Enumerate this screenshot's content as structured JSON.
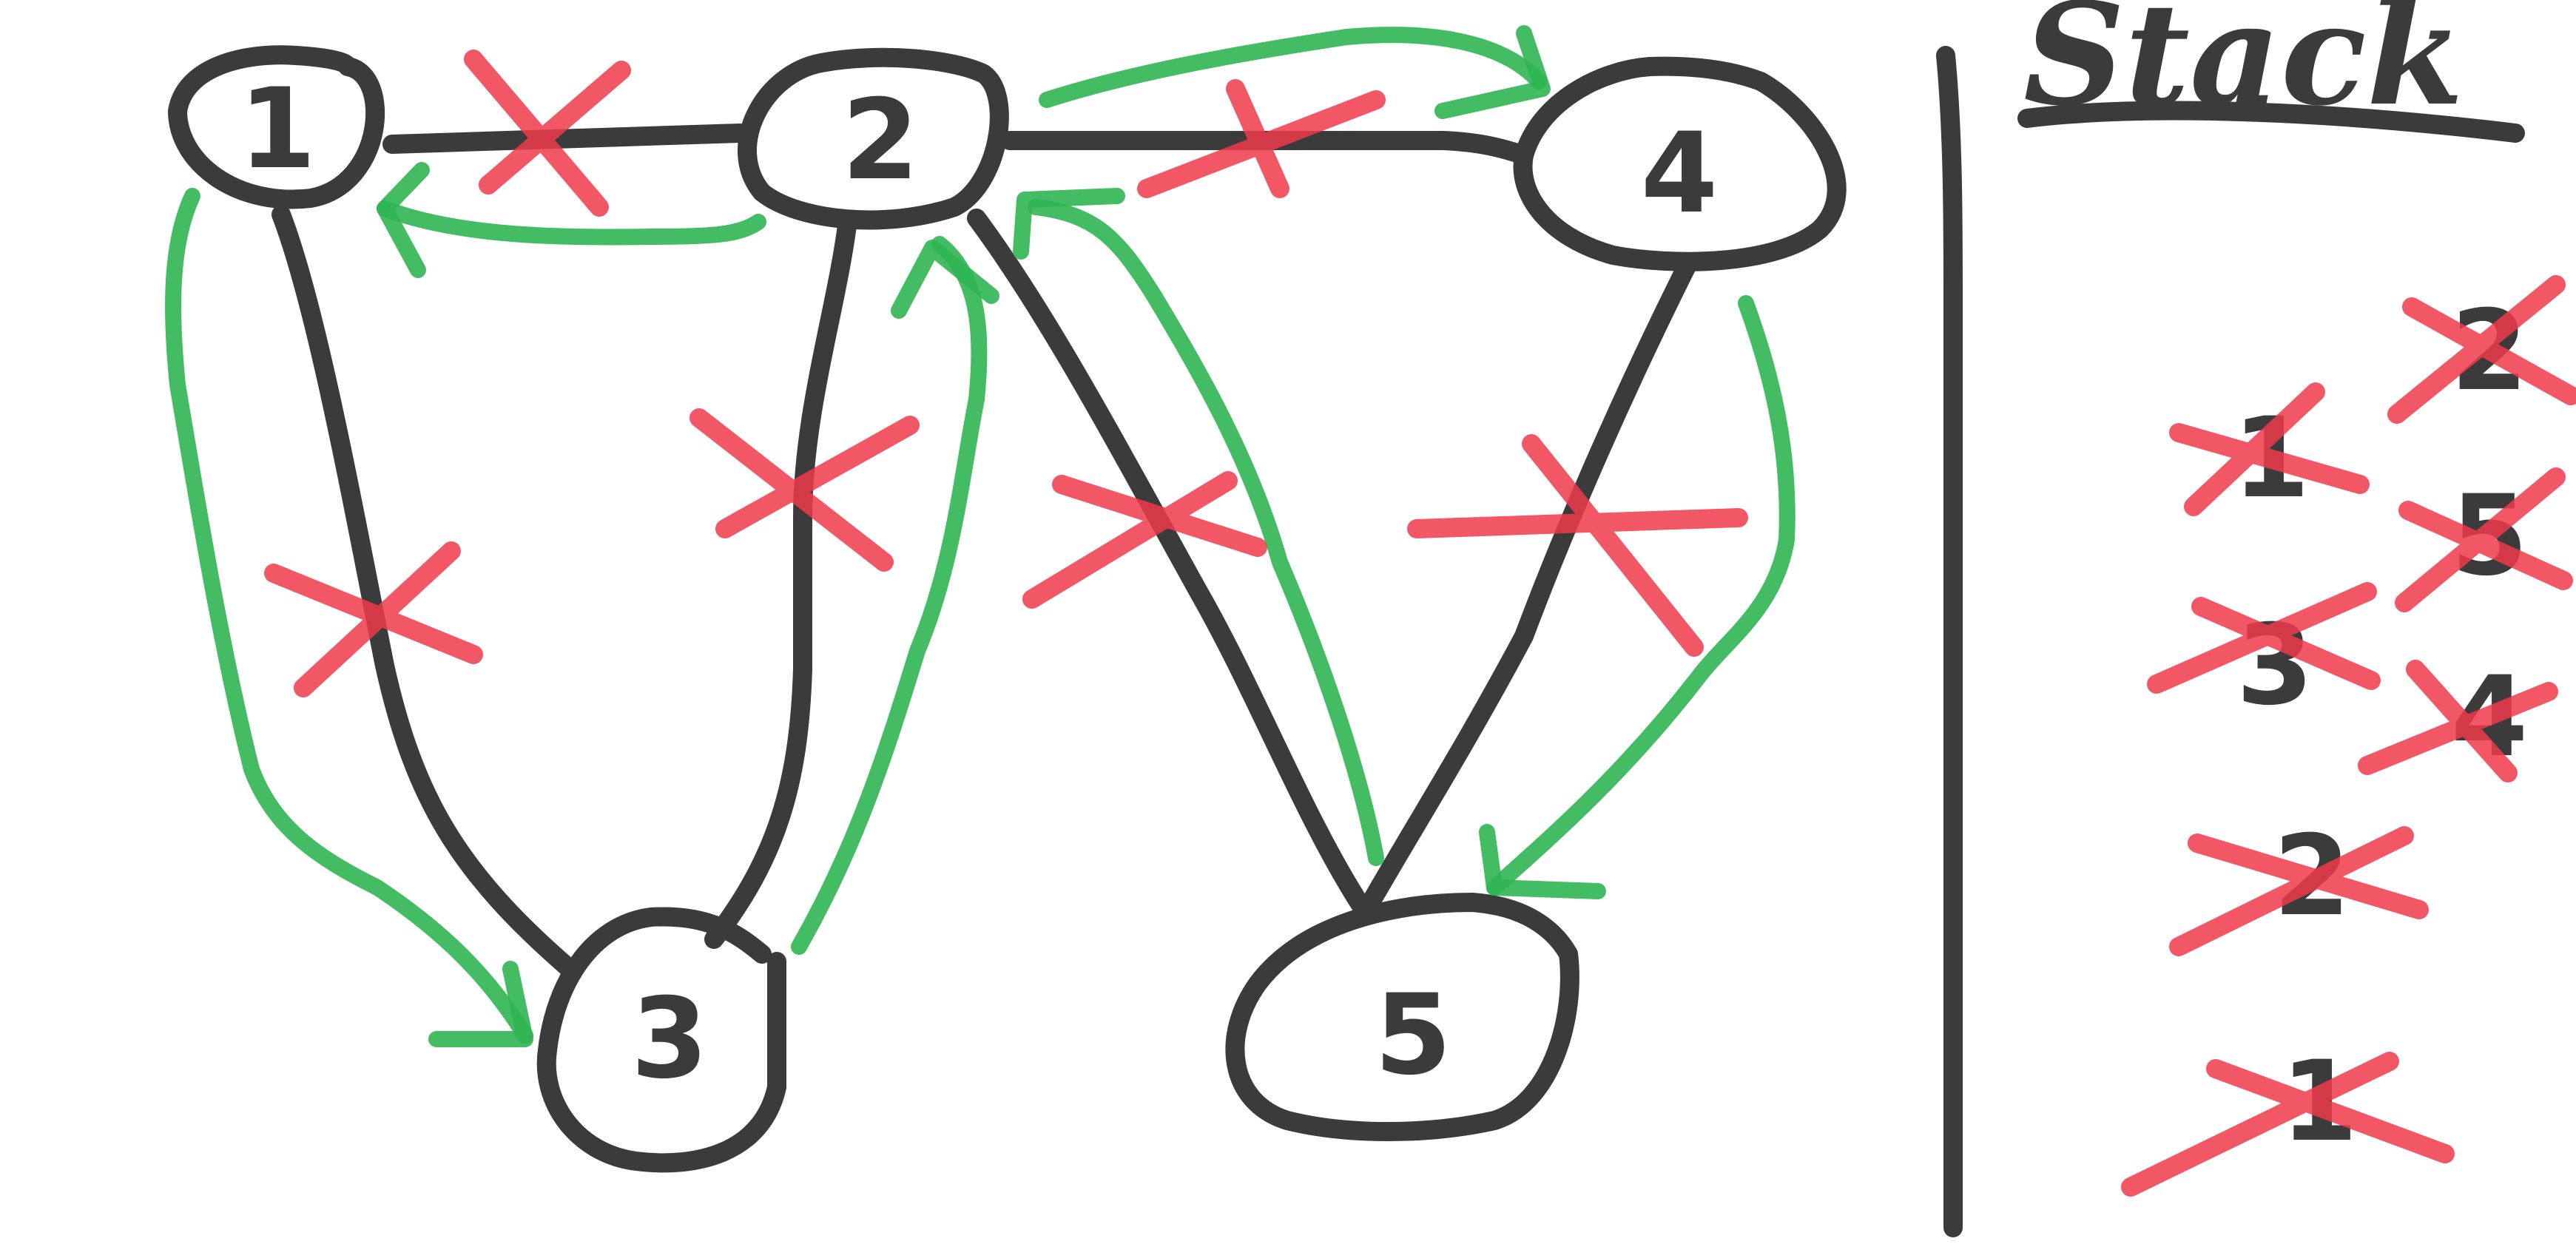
{
  "graph": {
    "nodes": [
      {
        "id": "1",
        "label": "1"
      },
      {
        "id": "2",
        "label": "2"
      },
      {
        "id": "3",
        "label": "3"
      },
      {
        "id": "4",
        "label": "4"
      },
      {
        "id": "5",
        "label": "5"
      }
    ],
    "edges": [
      {
        "from": "1",
        "to": "2",
        "crossed": true
      },
      {
        "from": "1",
        "to": "3",
        "crossed": true
      },
      {
        "from": "2",
        "to": "3",
        "crossed": true
      },
      {
        "from": "2",
        "to": "4",
        "crossed": true
      },
      {
        "from": "2",
        "to": "5",
        "crossed": true
      },
      {
        "from": "4",
        "to": "5",
        "crossed": true
      }
    ],
    "traversal_arrows": [
      {
        "from": "2",
        "to": "1"
      },
      {
        "from": "1",
        "to": "3"
      },
      {
        "from": "3",
        "to": "2"
      },
      {
        "from": "2",
        "to": "4"
      },
      {
        "from": "4",
        "to": "5"
      },
      {
        "from": "5",
        "to": "2"
      }
    ]
  },
  "stack": {
    "title": "Stack",
    "column_left": [
      "1",
      "3",
      "2",
      "1"
    ],
    "column_right": [
      "2",
      "5",
      "4"
    ],
    "crossed_left": [
      true,
      true,
      true,
      true
    ],
    "crossed_right": [
      true,
      true,
      true
    ]
  },
  "colors": {
    "ink": "#3b3b3b",
    "visited_arrow": "#2fb552",
    "cross_out": "#ee3a4a"
  }
}
